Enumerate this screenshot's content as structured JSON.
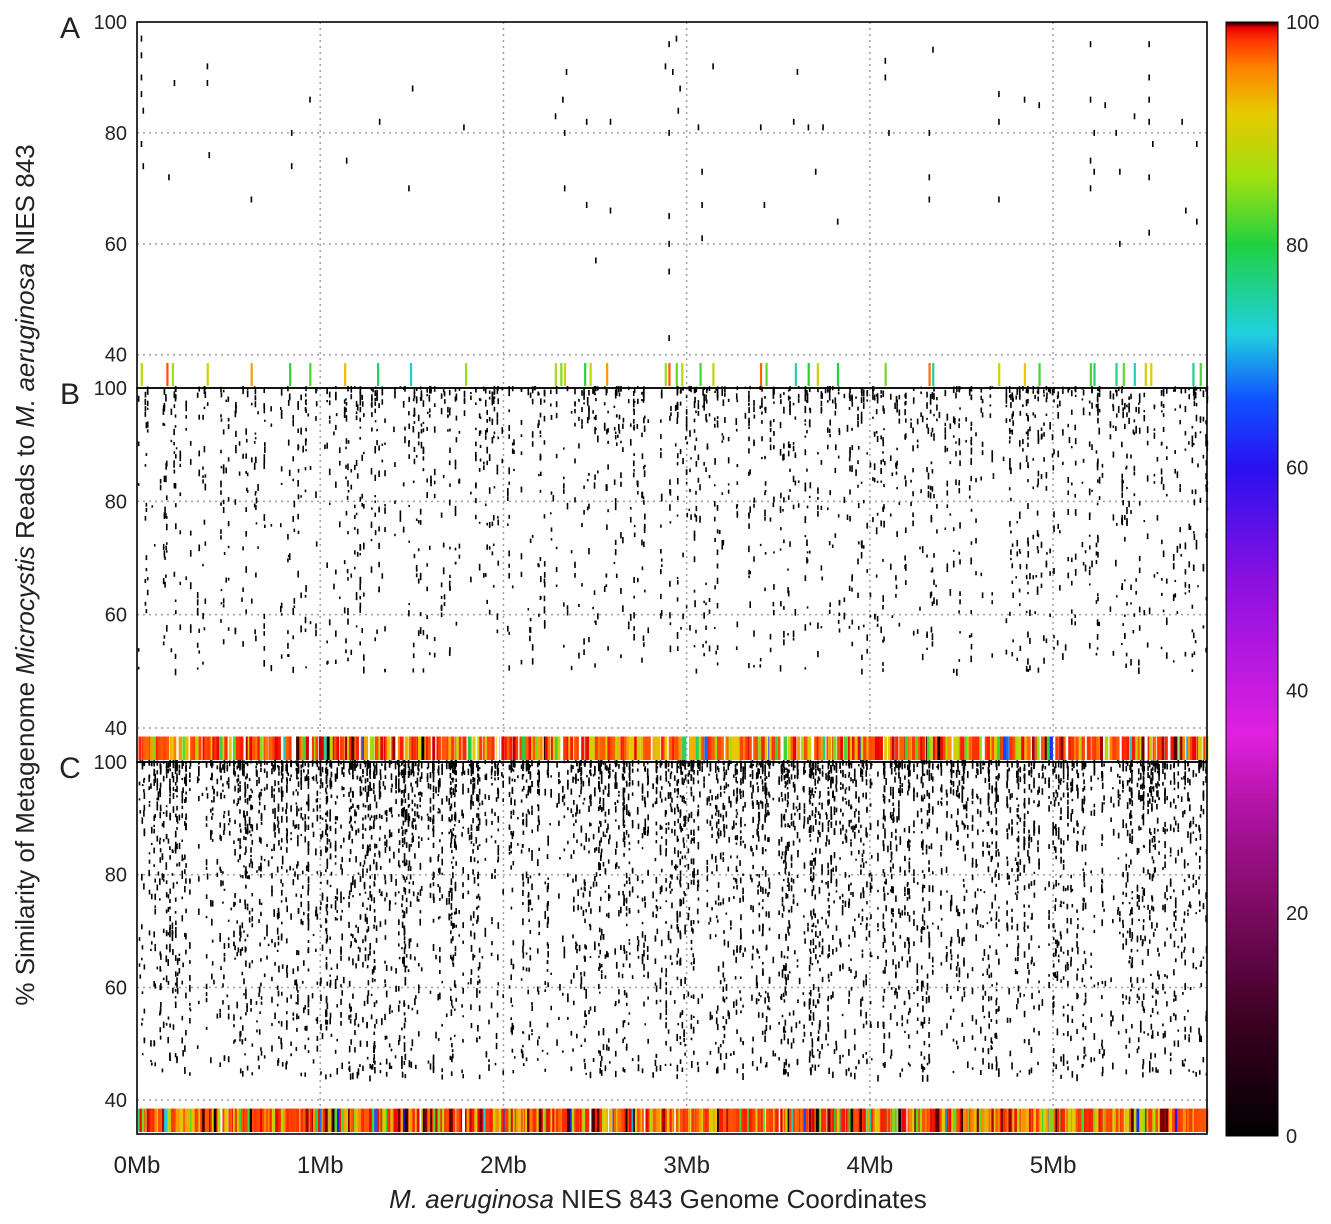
{
  "chart_data": {
    "type": "scatter",
    "y_axis_title": "% Similarity of Metagenome Microcystis Reads to M. aeruginosa NIES 843",
    "y_axis_title_parts": [
      {
        "text": "% Similarity of Metagenome ",
        "italic": false
      },
      {
        "text": "Microcystis",
        "italic": true
      },
      {
        "text": " Reads to ",
        "italic": false
      },
      {
        "text": "M. aeruginosa",
        "italic": true
      },
      {
        "text": " NIES 843",
        "italic": false
      }
    ],
    "x_axis_title": "M. aeruginosa NIES 843 Genome Coordinates",
    "x_axis_title_parts": [
      {
        "text": "M. aeruginosa",
        "italic": true
      },
      {
        "text": " NIES 843 Genome Coordinates",
        "italic": false
      }
    ],
    "x_range_mb": [
      0,
      5.84
    ],
    "x_ticks": [
      {
        "value": 0,
        "label": "0Mb"
      },
      {
        "value": 1,
        "label": "1Mb"
      },
      {
        "value": 2,
        "label": "2Mb"
      },
      {
        "value": 3,
        "label": "3Mb"
      },
      {
        "value": 4,
        "label": "4Mb"
      },
      {
        "value": 5,
        "label": "5Mb"
      }
    ],
    "y_range": [
      34,
      100
    ],
    "y_ticks": [
      40,
      60,
      80,
      100
    ],
    "grid": "dotted",
    "colorbar": {
      "range": [
        0,
        100
      ],
      "ticks": [
        0,
        20,
        40,
        60,
        80,
        100
      ],
      "colors": [
        "#000000",
        "#3a0020",
        "#7a0a5e",
        "#b414a8",
        "#e020e0",
        "#8a10e0",
        "#2a10f0",
        "#1050ff",
        "#20d0e0",
        "#20d040",
        "#a0e010",
        "#e8c800",
        "#ff8000",
        "#ff3000",
        "#e80000",
        "#000000"
      ],
      "color_stops": [
        0,
        0.1,
        0.2,
        0.3,
        0.36,
        0.5,
        0.6,
        0.66,
        0.72,
        0.8,
        0.86,
        0.92,
        0.96,
        0.985,
        0.995,
        1.0
      ]
    },
    "panels": [
      {
        "label": "A",
        "density": "sparse",
        "reads": [
          {
            "x": 0.02,
            "y": 97
          },
          {
            "x": 0.02,
            "y": 94
          },
          {
            "x": 0.02,
            "y": 90
          },
          {
            "x": 0.02,
            "y": 87
          },
          {
            "x": 0.03,
            "y": 84
          },
          {
            "x": 0.02,
            "y": 78
          },
          {
            "x": 0.03,
            "y": 74
          },
          {
            "x": 0.17,
            "y": 72
          },
          {
            "x": 0.2,
            "y": 89
          },
          {
            "x": 0.38,
            "y": 92
          },
          {
            "x": 0.38,
            "y": 89
          },
          {
            "x": 0.39,
            "y": 76
          },
          {
            "x": 0.62,
            "y": 68
          },
          {
            "x": 0.84,
            "y": 80
          },
          {
            "x": 0.84,
            "y": 74
          },
          {
            "x": 0.94,
            "y": 86
          },
          {
            "x": 1.14,
            "y": 75
          },
          {
            "x": 1.32,
            "y": 82
          },
          {
            "x": 1.5,
            "y": 88
          },
          {
            "x": 1.48,
            "y": 70
          },
          {
            "x": 1.78,
            "y": 81
          },
          {
            "x": 2.28,
            "y": 83
          },
          {
            "x": 2.34,
            "y": 91
          },
          {
            "x": 2.32,
            "y": 86
          },
          {
            "x": 2.33,
            "y": 80
          },
          {
            "x": 2.33,
            "y": 70
          },
          {
            "x": 2.45,
            "y": 82
          },
          {
            "x": 2.45,
            "y": 67
          },
          {
            "x": 2.5,
            "y": 57
          },
          {
            "x": 2.58,
            "y": 82
          },
          {
            "x": 2.58,
            "y": 66
          },
          {
            "x": 2.88,
            "y": 92
          },
          {
            "x": 2.9,
            "y": 96
          },
          {
            "x": 2.92,
            "y": 91
          },
          {
            "x": 2.94,
            "y": 97
          },
          {
            "x": 2.96,
            "y": 88
          },
          {
            "x": 2.95,
            "y": 84
          },
          {
            "x": 2.9,
            "y": 80
          },
          {
            "x": 2.9,
            "y": 65
          },
          {
            "x": 2.9,
            "y": 60
          },
          {
            "x": 2.9,
            "y": 55
          },
          {
            "x": 2.9,
            "y": 43
          },
          {
            "x": 3.14,
            "y": 92
          },
          {
            "x": 3.06,
            "y": 81
          },
          {
            "x": 3.08,
            "y": 73
          },
          {
            "x": 3.08,
            "y": 67
          },
          {
            "x": 3.08,
            "y": 61
          },
          {
            "x": 3.4,
            "y": 81
          },
          {
            "x": 3.42,
            "y": 67
          },
          {
            "x": 3.6,
            "y": 91
          },
          {
            "x": 3.58,
            "y": 82
          },
          {
            "x": 3.66,
            "y": 81
          },
          {
            "x": 3.7,
            "y": 73
          },
          {
            "x": 3.74,
            "y": 81
          },
          {
            "x": 3.82,
            "y": 64
          },
          {
            "x": 4.08,
            "y": 93
          },
          {
            "x": 4.08,
            "y": 90
          },
          {
            "x": 4.1,
            "y": 80
          },
          {
            "x": 4.34,
            "y": 95
          },
          {
            "x": 4.32,
            "y": 80
          },
          {
            "x": 4.32,
            "y": 72
          },
          {
            "x": 4.32,
            "y": 68
          },
          {
            "x": 4.7,
            "y": 87
          },
          {
            "x": 4.7,
            "y": 82
          },
          {
            "x": 4.7,
            "y": 68
          },
          {
            "x": 4.84,
            "y": 86
          },
          {
            "x": 4.92,
            "y": 85
          },
          {
            "x": 5.2,
            "y": 96
          },
          {
            "x": 5.2,
            "y": 86
          },
          {
            "x": 5.22,
            "y": 80
          },
          {
            "x": 5.2,
            "y": 75
          },
          {
            "x": 5.22,
            "y": 73
          },
          {
            "x": 5.2,
            "y": 70
          },
          {
            "x": 5.28,
            "y": 85
          },
          {
            "x": 5.34,
            "y": 80
          },
          {
            "x": 5.36,
            "y": 73
          },
          {
            "x": 5.36,
            "y": 60
          },
          {
            "x": 5.44,
            "y": 83
          },
          {
            "x": 5.52,
            "y": 96
          },
          {
            "x": 5.52,
            "y": 90
          },
          {
            "x": 5.52,
            "y": 86
          },
          {
            "x": 5.52,
            "y": 82
          },
          {
            "x": 5.54,
            "y": 78
          },
          {
            "x": 5.52,
            "y": 72
          },
          {
            "x": 5.52,
            "y": 62
          },
          {
            "x": 5.7,
            "y": 82
          },
          {
            "x": 5.72,
            "y": 66
          },
          {
            "x": 5.78,
            "y": 78
          },
          {
            "x": 5.78,
            "y": 64
          }
        ]
      },
      {
        "label": "B",
        "density": "medium"
      },
      {
        "label": "C",
        "density": "dense"
      }
    ]
  }
}
